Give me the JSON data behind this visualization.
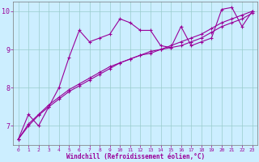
{
  "x_data": [
    0,
    1,
    2,
    3,
    4,
    5,
    6,
    7,
    8,
    9,
    10,
    11,
    12,
    13,
    14,
    15,
    16,
    17,
    18,
    19,
    20,
    21,
    22,
    23
  ],
  "line1_y": [
    6.65,
    7.3,
    7.0,
    7.5,
    8.0,
    8.8,
    9.5,
    9.2,
    9.3,
    9.4,
    9.8,
    9.7,
    9.5,
    9.5,
    9.1,
    9.05,
    9.6,
    9.1,
    9.2,
    9.3,
    10.05,
    10.1,
    9.6,
    10.0
  ],
  "line2_y": [
    6.65,
    7.05,
    7.3,
    7.55,
    7.75,
    7.95,
    8.1,
    8.25,
    8.4,
    8.55,
    8.65,
    8.75,
    8.85,
    8.9,
    9.0,
    9.1,
    9.2,
    9.3,
    9.4,
    9.55,
    9.7,
    9.8,
    9.9,
    10.0
  ],
  "line3_y": [
    6.65,
    7.0,
    7.28,
    7.5,
    7.7,
    7.9,
    8.05,
    8.2,
    8.35,
    8.5,
    8.65,
    8.75,
    8.85,
    8.95,
    9.0,
    9.05,
    9.1,
    9.2,
    9.3,
    9.45,
    9.6,
    9.7,
    9.8,
    9.95
  ],
  "line_color": "#990099",
  "bg_color": "#cceeff",
  "grid_color": "#99cccc",
  "xlabel": "Windchill (Refroidissement éolien,°C)",
  "ylim": [
    6.5,
    10.25
  ],
  "xlim": [
    -0.5,
    23.5
  ],
  "yticks": [
    7,
    8,
    9,
    10
  ],
  "xticks": [
    0,
    1,
    2,
    3,
    4,
    5,
    6,
    7,
    8,
    9,
    10,
    11,
    12,
    13,
    14,
    15,
    16,
    17,
    18,
    19,
    20,
    21,
    22,
    23
  ]
}
